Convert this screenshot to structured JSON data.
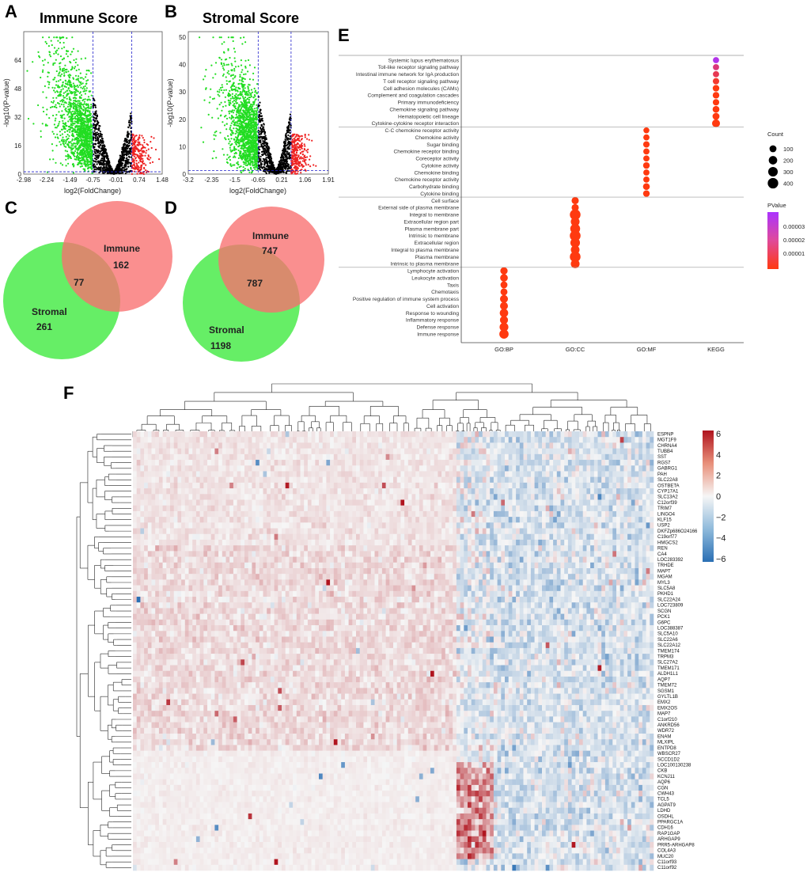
{
  "panels": {
    "A": {
      "letter": "A",
      "title": "Immune Score",
      "ylabel": "-log10(P-value)",
      "xlabel": "log2(FoldChange)",
      "xticks": [
        "-2.98",
        "-2.24",
        "-1.49",
        "-0.75",
        "-0.01",
        "0.74",
        "1.48"
      ],
      "yticks": [
        "0",
        "16",
        "32",
        "48",
        "64"
      ],
      "xrange": [
        -2.98,
        1.48
      ],
      "yrange": [
        0,
        80
      ],
      "cutoffs_x": [
        -0.75,
        0.5
      ],
      "cutoff_y": 1.3
    },
    "B": {
      "letter": "B",
      "title": "Stromal Score",
      "ylabel": "-log10(P-value)",
      "xlabel": "log2(FoldChange)",
      "xticks": [
        "-3.2",
        "-2.35",
        "-1.5",
        "-0.65",
        "0.21",
        "1.06",
        "1.91"
      ],
      "yticks": [
        "0",
        "10",
        "20",
        "30",
        "40",
        "50"
      ],
      "xrange": [
        -3.2,
        1.91
      ],
      "yrange": [
        0,
        52
      ],
      "cutoffs_x": [
        -0.65,
        0.55
      ],
      "cutoff_y": 1.3
    },
    "C": {
      "letter": "C",
      "immune_label": "Immune",
      "immune_only": "162",
      "overlap": "77",
      "stromal_label": "Stromal",
      "stromal_only": "261"
    },
    "D": {
      "letter": "D",
      "immune_label": "Immune",
      "immune_only": "747",
      "overlap": "787",
      "stromal_label": "Stromal",
      "stromal_only": "1198"
    },
    "E": {
      "letter": "E",
      "legend_count_title": "Count",
      "legend_count_values": [
        "100",
        "200",
        "300",
        "400"
      ],
      "legend_p_title": "PValue",
      "legend_p_values": [
        "0.00003",
        "0.00002",
        "0.00001"
      ]
    },
    "F": {
      "letter": "F",
      "colorbar_ticks": [
        "6",
        "4",
        "2",
        "0",
        "−2",
        "−4",
        "−6"
      ],
      "genes": [
        "ESPNP",
        "MGT1F9",
        "CHRNA4",
        "TUBB4",
        "SST",
        "RGS7",
        "GABRG1",
        "PAH",
        "SLC22A8",
        "OSTBETA",
        "CYP17A1",
        "SLC13A2",
        "C12orf39",
        "TRIM7",
        "LINGO4",
        "KLF15",
        "USP2",
        "DKFZp686O24166",
        "C19orf77",
        "HMGCS2",
        "REN",
        "CA4",
        "LOC283392",
        "TRHDE",
        "MAPT",
        "MGAM",
        "MYL3",
        "SLC5A8",
        "PKHD1",
        "SLC22A24",
        "LOC723809",
        "SCGN",
        "PCK1",
        "G6PC",
        "LOC388387",
        "SLC5A10",
        "SLC22A6",
        "SLC22A12",
        "TMEM174",
        "TRPM3",
        "SLC27A2",
        "TMEM171",
        "ALDH1L1",
        "AQP7",
        "TMEM72",
        "SGSM1",
        "GYLTL1B",
        "EMX2",
        "EMX2OS",
        "MAP7",
        "C1orf210",
        "ANKRD56",
        "WDR72",
        "ENAM",
        "MLXIPL",
        "ENTPD8",
        "WBSCR27",
        "SCCD1D2",
        "LOC100130238",
        "CKB",
        "KCNJ11",
        "AQP6",
        "CGN",
        "CWH43",
        "TCL5",
        "AGPAT9",
        "LDHD",
        "OSDHL",
        "PPARGC1A",
        "CDH16",
        "RAP1GAP",
        "ARHGAP9",
        "PRR5-ARHGAP8",
        "COL4A3",
        "MUC20",
        "C11orf93",
        "C11orf92"
      ]
    }
  },
  "chart_data": [
    {
      "type": "scatter",
      "id": "A",
      "title": "Immune Score",
      "xlabel": "log2(FoldChange)",
      "ylabel": "-log10(P-value)",
      "xlim": [
        -2.98,
        1.48
      ],
      "ylim": [
        0,
        80
      ],
      "series": [
        {
          "name": "down-regulated",
          "color": "#22dd22"
        },
        {
          "name": "not significant",
          "color": "#000000"
        },
        {
          "name": "up-regulated",
          "color": "#ee2222"
        }
      ],
      "thresholds": {
        "log2fc_low": -0.75,
        "log2fc_high": 0.5,
        "neg_log10_p": 1.3
      }
    },
    {
      "type": "scatter",
      "id": "B",
      "title": "Stromal Score",
      "xlabel": "log2(FoldChange)",
      "ylabel": "-log10(P-value)",
      "xlim": [
        -3.2,
        1.91
      ],
      "ylim": [
        0,
        52
      ],
      "series": [
        {
          "name": "down-regulated",
          "color": "#22dd22"
        },
        {
          "name": "not significant",
          "color": "#000000"
        },
        {
          "name": "up-regulated",
          "color": "#ee2222"
        }
      ],
      "thresholds": {
        "log2fc_low": -0.65,
        "log2fc_high": 0.55,
        "neg_log10_p": 1.3
      }
    },
    {
      "type": "venn",
      "id": "C",
      "sets": [
        {
          "name": "Immune",
          "only": 162,
          "color": "#f87070"
        },
        {
          "name": "Stromal",
          "only": 261,
          "color": "#66ee66"
        }
      ],
      "overlap": 77
    },
    {
      "type": "venn",
      "id": "D",
      "sets": [
        {
          "name": "Immune",
          "only": 747,
          "color": "#f87070"
        },
        {
          "name": "Stromal",
          "only": 1198,
          "color": "#66ee66"
        }
      ],
      "overlap": 787
    },
    {
      "type": "dot",
      "id": "E",
      "categories": [
        "GO:BP",
        "GO:CC",
        "GO:MF",
        "KEGG"
      ],
      "groups": [
        {
          "category": "KEGG",
          "terms": [
            {
              "term": "Systemic lupus erythematosus",
              "count": 60,
              "p": 3e-05
            },
            {
              "term": "Toll-like receptor signaling pathway",
              "count": 60,
              "p": 1.5e-05
            },
            {
              "term": "Intestinal immune network for IgA production",
              "count": 60,
              "p": 1e-05
            },
            {
              "term": "T cell receptor signaling pathway",
              "count": 70,
              "p": 5e-06
            },
            {
              "term": "Cell adhesion molecules (CAMs)",
              "count": 80,
              "p": 1e-06
            },
            {
              "term": "Complement and coagulation cascades",
              "count": 80,
              "p": 1e-06
            },
            {
              "term": "Primary immunodeficiency",
              "count": 70,
              "p": 1e-06
            },
            {
              "term": "Chemokine signaling pathway",
              "count": 90,
              "p": 1e-06
            },
            {
              "term": "Hematopoietic cell lineage",
              "count": 100,
              "p": 1e-06
            },
            {
              "term": "Cytokine-cytokine receptor interaction",
              "count": 160,
              "p": 1e-06
            }
          ]
        },
        {
          "category": "GO:MF",
          "terms": [
            {
              "term": "C-C chemokine receptor activity",
              "count": 50,
              "p": 1e-06
            },
            {
              "term": "Chemokine activity",
              "count": 60,
              "p": 1e-06
            },
            {
              "term": "Sugar binding",
              "count": 70,
              "p": 1e-06
            },
            {
              "term": "Chemokine receptor binding",
              "count": 60,
              "p": 1e-06
            },
            {
              "term": "Coreceptor activity",
              "count": 60,
              "p": 1e-06
            },
            {
              "term": "Cytokine activity",
              "count": 80,
              "p": 1e-06
            },
            {
              "term": "Chemokine binding",
              "count": 60,
              "p": 1e-06
            },
            {
              "term": "Chemokine receptor activity",
              "count": 60,
              "p": 1e-06
            },
            {
              "term": "Carbohydrate binding",
              "count": 90,
              "p": 1e-06
            },
            {
              "term": "Cytokine binding",
              "count": 80,
              "p": 1e-06
            }
          ]
        },
        {
          "category": "GO:CC",
          "terms": [
            {
              "term": "Cell surface",
              "count": 110,
              "p": 1e-06
            },
            {
              "term": "External side of plasma membrane",
              "count": 110,
              "p": 1e-06
            },
            {
              "term": "Integral to membrane",
              "count": 420,
              "p": 1e-06
            },
            {
              "term": "Extracellular region part",
              "count": 230,
              "p": 1e-06
            },
            {
              "term": "Plasma membrane part",
              "count": 330,
              "p": 1e-06
            },
            {
              "term": "Intrinsic to membrane",
              "count": 430,
              "p": 1e-06
            },
            {
              "term": "Extracellular region",
              "count": 300,
              "p": 1e-06
            },
            {
              "term": "Integral to plasma membrane",
              "count": 220,
              "p": 1e-06
            },
            {
              "term": "Plasma membrane",
              "count": 420,
              "p": 1e-06
            },
            {
              "term": "Intrinsic to plasma membrane",
              "count": 230,
              "p": 1e-06
            }
          ]
        },
        {
          "category": "GO:BP",
          "terms": [
            {
              "term": "Lymphocyte activation",
              "count": 120,
              "p": 1e-06
            },
            {
              "term": "Leukocyte activation",
              "count": 140,
              "p": 1e-06
            },
            {
              "term": "Taxis",
              "count": 100,
              "p": 1e-06
            },
            {
              "term": "Chemotaxis",
              "count": 100,
              "p": 1e-06
            },
            {
              "term": "Positive regulation of immune system process",
              "count": 160,
              "p": 1e-06
            },
            {
              "term": "Cell activation",
              "count": 160,
              "p": 1e-06
            },
            {
              "term": "Response to wounding",
              "count": 200,
              "p": 1e-06
            },
            {
              "term": "Inflammatory response",
              "count": 170,
              "p": 1e-06
            },
            {
              "term": "Defense response",
              "count": 230,
              "p": 1e-06
            },
            {
              "term": "Immune response",
              "count": 270,
              "p": 1e-06
            }
          ]
        }
      ],
      "size_legend": {
        "title": "Count",
        "values": [
          100,
          200,
          300,
          400
        ]
      },
      "color_legend": {
        "title": "PValue",
        "ticks": [
          3e-05,
          2e-05,
          1e-05
        ],
        "low": "#ff3a10",
        "high": "#aa33ff"
      }
    },
    {
      "type": "heatmap",
      "id": "F",
      "colorscale": {
        "min": -6,
        "max": 6,
        "low": "#2a6fb4",
        "mid": "#f6f6f6",
        "high": "#b0141e"
      },
      "n_rows": 77,
      "note": "row/column dendrograms shown; samples unlabeled"
    }
  ]
}
